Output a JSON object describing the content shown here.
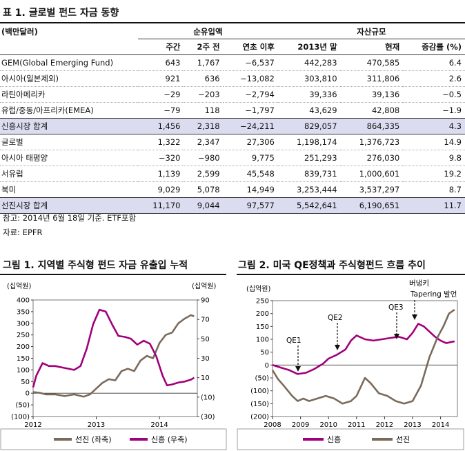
{
  "table": {
    "title": "표 1. 글로벌 펀드 자금 동향",
    "unit": "(백만달러)",
    "group_net": "순유입액",
    "group_aum": "자산규모",
    "columns": [
      "주간",
      "2주 전",
      "연초 이후",
      "2013년 말",
      "현재",
      "증감률 (%)"
    ],
    "rows": [
      {
        "label": "GEM(Global Emerging Fund)",
        "values": [
          "643",
          "1,767",
          "−6,537",
          "442,283",
          "470,585",
          "6.4"
        ],
        "subtotal": false
      },
      {
        "label": "아시아(일본제외)",
        "values": [
          "921",
          "636",
          "−13,082",
          "303,810",
          "311,806",
          "2.6"
        ],
        "subtotal": false
      },
      {
        "label": "라틴아메리카",
        "values": [
          "−29",
          "−203",
          "−2,794",
          "39,336",
          "39,136",
          "−0.5"
        ],
        "subtotal": false
      },
      {
        "label": "유럽/중동/아프리카(EMEA)",
        "values": [
          "−79",
          "118",
          "−1,797",
          "43,629",
          "42,808",
          "−1.9"
        ],
        "subtotal": false
      },
      {
        "label": "신흥시장 합계",
        "values": [
          "1,456",
          "2,318",
          "−24,211",
          "829,057",
          "864,335",
          "4.3"
        ],
        "subtotal": true
      },
      {
        "label": "글로벌",
        "values": [
          "1,322",
          "2,347",
          "27,306",
          "1,198,174",
          "1,376,723",
          "14.9"
        ],
        "subtotal": false
      },
      {
        "label": "아시아 태평양",
        "values": [
          "−320",
          "−980",
          "9,775",
          "251,293",
          "276,030",
          "9.8"
        ],
        "subtotal": false
      },
      {
        "label": "서유럽",
        "values": [
          "1,139",
          "2,599",
          "45,548",
          "839,731",
          "1,000,601",
          "19.2"
        ],
        "subtotal": false
      },
      {
        "label": "북미",
        "values": [
          "9,029",
          "5,078",
          "14,949",
          "3,253,444",
          "3,537,297",
          "8.7"
        ],
        "subtotal": false
      },
      {
        "label": "선진시장 합계",
        "values": [
          "11,170",
          "9,044",
          "97,577",
          "5,542,641",
          "6,190,651",
          "11.7"
        ],
        "subtotal": true
      }
    ],
    "note": "참고: 2014년 6월 18일 기준. ETF포함",
    "source": "자료: EPFR"
  },
  "chart1": {
    "title": "그림 1. 지역별 주식형 펀드 자금 유출입 누적",
    "left_unit": "(십억원)",
    "right_unit": "(십억원)",
    "left_ticks": [
      "400",
      "350",
      "300",
      "250",
      "200",
      "150",
      "100",
      "50",
      "0",
      "(50)",
      "(100)"
    ],
    "right_ticks": [
      "90",
      "70",
      "50",
      "30",
      "10",
      "(10)",
      "(30)"
    ],
    "x_ticks": [
      "2012",
      "2013",
      "2014"
    ],
    "legend": [
      "선진 (좌축)",
      "신흥 (우축)"
    ]
  },
  "chart2": {
    "title": "그림 2. 미국 QE정책과 주식형펀드 흐름 추이",
    "unit": "(십억원)",
    "y_ticks": [
      "250",
      "200",
      "150",
      "100",
      "50",
      "0",
      "(50)",
      "(100)",
      "(150)",
      "(200)"
    ],
    "x_ticks": [
      "2008",
      "2009",
      "2010",
      "2011",
      "2012",
      "2013",
      "2014"
    ],
    "annotations": [
      "QE1",
      "QE2",
      "QE3",
      "버냉키",
      "Tapering 발언"
    ],
    "legend": [
      "신흥",
      "선진"
    ]
  },
  "chart_data": [
    {
      "type": "line",
      "title": "그림 1. 지역별 주식형 펀드 자금 유출입 누적",
      "x_range": [
        2012.0,
        2014.6
      ],
      "series": [
        {
          "name": "선진 (좌축)",
          "axis": "left",
          "color": "#7a6a5a",
          "points": [
            [
              2012.0,
              5
            ],
            [
              2012.1,
              2
            ],
            [
              2012.2,
              -5
            ],
            [
              2012.35,
              -5
            ],
            [
              2012.5,
              -12
            ],
            [
              2012.65,
              -5
            ],
            [
              2012.8,
              -15
            ],
            [
              2012.9,
              -5
            ],
            [
              2013.0,
              20
            ],
            [
              2013.1,
              45
            ],
            [
              2013.2,
              60
            ],
            [
              2013.3,
              55
            ],
            [
              2013.4,
              95
            ],
            [
              2013.5,
              105
            ],
            [
              2013.6,
              95
            ],
            [
              2013.7,
              140
            ],
            [
              2013.8,
              160
            ],
            [
              2013.9,
              150
            ],
            [
              2014.0,
              215
            ],
            [
              2014.1,
              250
            ],
            [
              2014.2,
              260
            ],
            [
              2014.3,
              300
            ],
            [
              2014.4,
              320
            ],
            [
              2014.5,
              335
            ],
            [
              2014.55,
              330
            ]
          ]
        },
        {
          "name": "신흥 (우축)",
          "axis": "right",
          "color": "#a0007a",
          "points": [
            [
              2012.0,
              0
            ],
            [
              2012.05,
              12
            ],
            [
              2012.15,
              25
            ],
            [
              2012.25,
              22
            ],
            [
              2012.35,
              22
            ],
            [
              2012.5,
              20
            ],
            [
              2012.65,
              18
            ],
            [
              2012.75,
              22
            ],
            [
              2012.85,
              40
            ],
            [
              2012.95,
              65
            ],
            [
              2013.05,
              80
            ],
            [
              2013.15,
              78
            ],
            [
              2013.25,
              65
            ],
            [
              2013.35,
              53
            ],
            [
              2013.45,
              52
            ],
            [
              2013.55,
              50
            ],
            [
              2013.65,
              44
            ],
            [
              2013.75,
              48
            ],
            [
              2013.85,
              45
            ],
            [
              2013.95,
              32
            ],
            [
              2014.05,
              12
            ],
            [
              2014.12,
              2
            ],
            [
              2014.2,
              3
            ],
            [
              2014.3,
              5
            ],
            [
              2014.4,
              6
            ],
            [
              2014.5,
              8
            ],
            [
              2014.55,
              10
            ]
          ]
        }
      ],
      "y_left_range": [
        -100,
        400
      ],
      "y_right_range": [
        -30,
        90
      ]
    },
    {
      "type": "line",
      "title": "그림 2. 미국 QE정책과 주식형펀드 흐름 추이",
      "x_range": [
        2008.0,
        2014.6
      ],
      "ylim": [
        -200,
        250
      ],
      "series": [
        {
          "name": "신흥",
          "color": "#a0007a",
          "points": [
            [
              2008.0,
              0
            ],
            [
              2008.3,
              -10
            ],
            [
              2008.6,
              -20
            ],
            [
              2008.9,
              -35
            ],
            [
              2009.2,
              -30
            ],
            [
              2009.5,
              -15
            ],
            [
              2009.8,
              5
            ],
            [
              2010.0,
              25
            ],
            [
              2010.3,
              40
            ],
            [
              2010.6,
              60
            ],
            [
              2010.8,
              95
            ],
            [
              2011.0,
              115
            ],
            [
              2011.3,
              100
            ],
            [
              2011.6,
              95
            ],
            [
              2011.9,
              100
            ],
            [
              2012.2,
              105
            ],
            [
              2012.5,
              110
            ],
            [
              2012.8,
              100
            ],
            [
              2013.0,
              125
            ],
            [
              2013.2,
              160
            ],
            [
              2013.4,
              150
            ],
            [
              2013.6,
              130
            ],
            [
              2013.8,
              110
            ],
            [
              2014.0,
              95
            ],
            [
              2014.2,
              85
            ],
            [
              2014.4,
              90
            ],
            [
              2014.5,
              92
            ]
          ]
        },
        {
          "name": "선진",
          "color": "#7a6a5a",
          "points": [
            [
              2008.0,
              -20
            ],
            [
              2008.2,
              -55
            ],
            [
              2008.4,
              -80
            ],
            [
              2008.7,
              -120
            ],
            [
              2008.9,
              -140
            ],
            [
              2009.1,
              -130
            ],
            [
              2009.3,
              -140
            ],
            [
              2009.6,
              -130
            ],
            [
              2009.9,
              -120
            ],
            [
              2010.2,
              -130
            ],
            [
              2010.5,
              -150
            ],
            [
              2010.8,
              -140
            ],
            [
              2011.0,
              -120
            ],
            [
              2011.3,
              -50
            ],
            [
              2011.5,
              -70
            ],
            [
              2011.8,
              -110
            ],
            [
              2012.1,
              -120
            ],
            [
              2012.4,
              -140
            ],
            [
              2012.7,
              -150
            ],
            [
              2013.0,
              -140
            ],
            [
              2013.3,
              -80
            ],
            [
              2013.6,
              30
            ],
            [
              2013.9,
              110
            ],
            [
              2014.1,
              150
            ],
            [
              2014.3,
              200
            ],
            [
              2014.5,
              215
            ]
          ]
        }
      ]
    }
  ]
}
